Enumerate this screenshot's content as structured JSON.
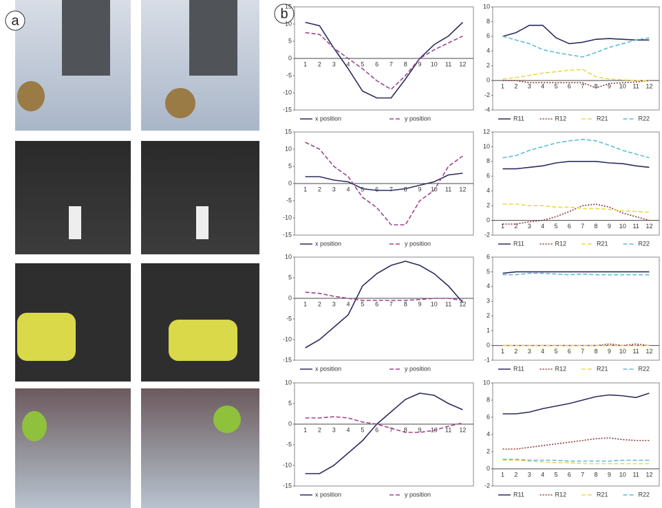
{
  "panels": [
    "a",
    "b"
  ],
  "chart_data": [
    {
      "type": "line",
      "categories": [
        "1",
        "2",
        "3",
        "4",
        "5",
        "6",
        "7",
        "8",
        "9",
        "10",
        "11",
        "12"
      ],
      "ylim": [
        -15,
        15
      ],
      "yticks": [
        -15,
        -10,
        -5,
        0,
        5,
        10,
        15
      ],
      "series": [
        {
          "name": "x position",
          "color": "#2b2b5e",
          "line_style": "solid",
          "values": [
            10.5,
            9.5,
            3,
            -3,
            -9.5,
            -11.5,
            -11.5,
            -6,
            0,
            4,
            6.5,
            10.5
          ]
        },
        {
          "name": "y position",
          "color": "#a0418f",
          "line_style": "dashed",
          "values": [
            7.5,
            7,
            3,
            0,
            -3,
            -6.5,
            -9,
            -5,
            0,
            2.5,
            4.5,
            6.5
          ]
        }
      ]
    },
    {
      "type": "line",
      "categories": [
        "1",
        "2",
        "3",
        "4",
        "5",
        "6",
        "7",
        "8",
        "9",
        "10",
        "11",
        "12"
      ],
      "ylim": [
        -4,
        10
      ],
      "yticks": [
        -4,
        -2,
        0,
        2,
        4,
        6,
        8,
        10
      ],
      "series": [
        {
          "name": "R11",
          "color": "#2b2b5e",
          "line_style": "solid",
          "values": [
            6,
            6.5,
            7.5,
            7.5,
            5.8,
            5,
            5.2,
            5.6,
            5.7,
            5.6,
            5.5,
            5.5
          ]
        },
        {
          "name": "R12",
          "color": "#8b3a3a",
          "line_style": "dotted",
          "values": [
            0,
            0,
            -0.3,
            -0.3,
            -0.3,
            -0.3,
            -0.3,
            -1,
            -0.4,
            -0.3,
            -0.2,
            0
          ]
        },
        {
          "name": "R21",
          "color": "#e8d84a",
          "line_style": "dashed",
          "values": [
            0.2,
            0.4,
            0.7,
            1,
            1.2,
            1.4,
            1.5,
            0.5,
            0.2,
            0.1,
            0,
            0
          ]
        },
        {
          "name": "R22",
          "color": "#5bbcd6",
          "line_style": "dashed",
          "values": [
            6,
            5.5,
            5,
            4.2,
            3.8,
            3.5,
            3.2,
            3.8,
            4.5,
            5,
            5.5,
            5.8
          ]
        }
      ]
    },
    {
      "type": "line",
      "categories": [
        "1",
        "2",
        "3",
        "4",
        "5",
        "6",
        "7",
        "8",
        "9",
        "10",
        "11",
        "12"
      ],
      "ylim": [
        -15,
        15
      ],
      "yticks": [
        -15,
        -10,
        -5,
        0,
        5,
        10,
        15
      ],
      "series": [
        {
          "name": "x position",
          "color": "#2b2b5e",
          "line_style": "solid",
          "values": [
            2,
            2,
            1,
            0.5,
            -1.5,
            -2,
            -2,
            -1.5,
            -0.5,
            0.5,
            2.5,
            3
          ]
        },
        {
          "name": "y position",
          "color": "#a0418f",
          "line_style": "dashed",
          "values": [
            12,
            10,
            5,
            2,
            -4,
            -7,
            -12,
            -12,
            -5,
            -2,
            5,
            8
          ]
        }
      ]
    },
    {
      "type": "line",
      "categories": [
        "1",
        "2",
        "3",
        "4",
        "5",
        "6",
        "7",
        "8",
        "9",
        "10",
        "11",
        "12"
      ],
      "ylim": [
        -2,
        12
      ],
      "yticks": [
        -2,
        0,
        2,
        4,
        6,
        8,
        10,
        12
      ],
      "series": [
        {
          "name": "R11",
          "color": "#2b2b5e",
          "line_style": "solid",
          "values": [
            7,
            7,
            7.2,
            7.4,
            7.8,
            8,
            8,
            8,
            7.8,
            7.7,
            7.4,
            7.2
          ]
        },
        {
          "name": "R12",
          "color": "#8b3a3a",
          "line_style": "dotted",
          "values": [
            -0.5,
            -0.5,
            -0.2,
            0,
            0.5,
            1.2,
            2,
            2.2,
            1.8,
            1,
            0.5,
            0
          ]
        },
        {
          "name": "R21",
          "color": "#e8d84a",
          "line_style": "dashed",
          "values": [
            2.2,
            2.2,
            2,
            2,
            1.8,
            1.8,
            1.6,
            1.6,
            1.5,
            1.3,
            1.2,
            1.1
          ]
        },
        {
          "name": "R22",
          "color": "#5bbcd6",
          "line_style": "dashed",
          "values": [
            8.5,
            8.8,
            9.5,
            10,
            10.5,
            10.8,
            11,
            10.8,
            10.2,
            9.5,
            9,
            8.5
          ]
        }
      ]
    },
    {
      "type": "line",
      "categories": [
        "1",
        "2",
        "3",
        "4",
        "5",
        "6",
        "7",
        "8",
        "9",
        "10",
        "11",
        "12"
      ],
      "ylim": [
        -15,
        10
      ],
      "yticks": [
        -15,
        -10,
        -5,
        0,
        5,
        10
      ],
      "series": [
        {
          "name": "x position",
          "color": "#2b2b5e",
          "line_style": "solid",
          "values": [
            -12,
            -10,
            -7,
            -4,
            3,
            6,
            8,
            9,
            8,
            6,
            3,
            -1
          ]
        },
        {
          "name": "y position",
          "color": "#a0418f",
          "line_style": "dashed",
          "values": [
            1.5,
            1.2,
            0.5,
            0,
            -0.5,
            -0.5,
            -0.5,
            -0.5,
            -0.3,
            0,
            0,
            -0.5
          ]
        }
      ]
    },
    {
      "type": "line",
      "categories": [
        "1",
        "2",
        "3",
        "4",
        "5",
        "6",
        "7",
        "8",
        "9",
        "10",
        "11",
        "12"
      ],
      "ylim": [
        -1,
        6
      ],
      "yticks": [
        -1,
        0,
        1,
        2,
        3,
        4,
        5,
        6
      ],
      "series": [
        {
          "name": "R11",
          "color": "#2b2b5e",
          "line_style": "solid",
          "values": [
            4.9,
            5,
            5,
            5,
            5,
            5,
            5,
            5,
            5,
            5,
            5,
            5
          ]
        },
        {
          "name": "R12",
          "color": "#8b3a3a",
          "line_style": "dotted",
          "values": [
            0,
            0,
            0,
            0,
            0,
            0,
            0,
            0,
            0.1,
            0,
            0.1,
            0
          ]
        },
        {
          "name": "R21",
          "color": "#e8d84a",
          "line_style": "dashed",
          "values": [
            0,
            0,
            0,
            0,
            0,
            0,
            0,
            0,
            0,
            0,
            0,
            0
          ]
        },
        {
          "name": "R22",
          "color": "#5bbcd6",
          "line_style": "dashed",
          "values": [
            4.8,
            4.8,
            4.9,
            4.9,
            4.85,
            4.8,
            4.85,
            4.8,
            4.8,
            4.8,
            4.8,
            4.8
          ]
        }
      ]
    },
    {
      "type": "line",
      "categories": [
        "1",
        "2",
        "3",
        "4",
        "5",
        "6",
        "7",
        "8",
        "9",
        "10",
        "11",
        "12"
      ],
      "ylim": [
        -15,
        10
      ],
      "yticks": [
        -15,
        -10,
        -5,
        0,
        5,
        10
      ],
      "series": [
        {
          "name": "x position",
          "color": "#2b2b5e",
          "line_style": "solid",
          "values": [
            -12,
            -12,
            -10,
            -7,
            -4,
            0,
            3,
            6,
            7.5,
            7,
            5,
            3.5
          ]
        },
        {
          "name": "y position",
          "color": "#a0418f",
          "line_style": "dashed",
          "values": [
            1.5,
            1.5,
            1.8,
            1.5,
            0.5,
            0,
            -1,
            -2,
            -2,
            -1.5,
            -0.5,
            0.3
          ]
        }
      ]
    },
    {
      "type": "line",
      "categories": [
        "1",
        "2",
        "3",
        "4",
        "5",
        "6",
        "7",
        "8",
        "9",
        "10",
        "11",
        "12"
      ],
      "ylim": [
        -2,
        10
      ],
      "yticks": [
        -2,
        0,
        2,
        4,
        6,
        8,
        10
      ],
      "series": [
        {
          "name": "R11",
          "color": "#2b2b5e",
          "line_style": "solid",
          "values": [
            6.4,
            6.4,
            6.6,
            7,
            7.3,
            7.6,
            8,
            8.4,
            8.6,
            8.5,
            8.3,
            8.8
          ]
        },
        {
          "name": "R12",
          "color": "#8b3a3a",
          "line_style": "dotted",
          "values": [
            2.3,
            2.3,
            2.5,
            2.7,
            2.9,
            3.1,
            3.3,
            3.5,
            3.6,
            3.4,
            3.3,
            3.3
          ]
        },
        {
          "name": "R21",
          "color": "#e8d84a",
          "line_style": "dashed",
          "values": [
            1,
            1,
            0.9,
            0.8,
            0.7,
            0.7,
            0.6,
            0.6,
            0.6,
            0.6,
            0.6,
            0.6
          ]
        },
        {
          "name": "R22",
          "color": "#5bbcd6",
          "line_style": "dashed",
          "values": [
            1.1,
            1.1,
            1,
            1,
            1,
            0.9,
            0.9,
            0.9,
            0.9,
            1,
            1,
            1
          ]
        }
      ]
    }
  ]
}
